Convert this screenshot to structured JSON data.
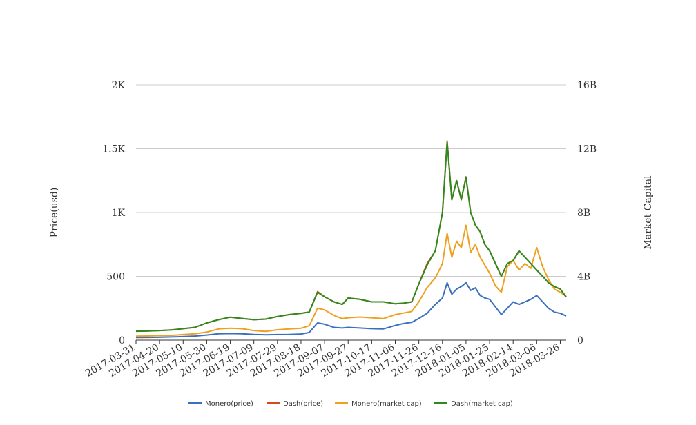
{
  "chart_data": {
    "type": "line",
    "title": "",
    "ylabel": "Price(usd)",
    "ylabel_right": "Market Capital",
    "ylim": [
      0,
      2000
    ],
    "ylim_right": [
      0,
      16000000000
    ],
    "yticks": [
      {
        "value": 0,
        "label": "0"
      },
      {
        "value": 500,
        "label": "500"
      },
      {
        "value": 1000,
        "label": "1K"
      },
      {
        "value": 1500,
        "label": "1.5K"
      },
      {
        "value": 2000,
        "label": "2K"
      }
    ],
    "yticks_right": [
      {
        "value": 0,
        "label": "0"
      },
      {
        "value": 4000000000,
        "label": "4B"
      },
      {
        "value": 8000000000,
        "label": "8B"
      },
      {
        "value": 12000000000,
        "label": "12B"
      },
      {
        "value": 16000000000,
        "label": "16B"
      }
    ],
    "x_tick_labels": [
      "2017-03-31",
      "2017-04-20",
      "2017-05-10",
      "2017-05-30",
      "2017-06-19",
      "2017-07-09",
      "2017-07-29",
      "2017-08-18",
      "2017-09-07",
      "2017-09-27",
      "2017-10-17",
      "2017-11-06",
      "2017-11-26",
      "2017-12-16",
      "2018-01-05",
      "2018-01-25",
      "2018-02-14",
      "2018-03-06",
      "2018-03-26"
    ],
    "legend_position": "bottom",
    "grid": true,
    "x": [
      "2017-03-31",
      "2017-04-10",
      "2017-04-20",
      "2017-04-30",
      "2017-05-10",
      "2017-05-20",
      "2017-05-30",
      "2017-06-09",
      "2017-06-19",
      "2017-06-29",
      "2017-07-09",
      "2017-07-19",
      "2017-07-29",
      "2017-08-08",
      "2017-08-18",
      "2017-08-25",
      "2017-09-01",
      "2017-09-07",
      "2017-09-15",
      "2017-09-22",
      "2017-09-27",
      "2017-10-07",
      "2017-10-17",
      "2017-10-27",
      "2017-11-06",
      "2017-11-13",
      "2017-11-20",
      "2017-11-26",
      "2017-12-03",
      "2017-12-10",
      "2017-12-16",
      "2017-12-20",
      "2017-12-24",
      "2017-12-28",
      "2018-01-01",
      "2018-01-05",
      "2018-01-09",
      "2018-01-13",
      "2018-01-17",
      "2018-01-21",
      "2018-01-25",
      "2018-01-30",
      "2018-02-04",
      "2018-02-09",
      "2018-02-14",
      "2018-02-19",
      "2018-02-24",
      "2018-03-01",
      "2018-03-06",
      "2018-03-11",
      "2018-03-16",
      "2018-03-21",
      "2018-03-26",
      "2018-03-31"
    ],
    "series": [
      {
        "name": "Monero(price)",
        "color": "#3a6fbf",
        "axis": "left",
        "values": [
          20,
          21,
          22,
          25,
          28,
          32,
          40,
          50,
          52,
          50,
          45,
          42,
          44,
          45,
          48,
          60,
          135,
          125,
          100,
          95,
          100,
          95,
          90,
          88,
          115,
          130,
          140,
          170,
          210,
          280,
          330,
          450,
          360,
          400,
          420,
          450,
          390,
          410,
          350,
          330,
          320,
          260,
          200,
          250,
          300,
          280,
          300,
          320,
          350,
          300,
          250,
          220,
          210,
          190
        ]
      },
      {
        "name": "Dash(price)",
        "color": "#d9471e",
        "axis": "left",
        "values": [
          70,
          72,
          75,
          80,
          90,
          100,
          135,
          160,
          180,
          170,
          160,
          165,
          185,
          200,
          210,
          220,
          380,
          340,
          300,
          280,
          330,
          320,
          300,
          300,
          285,
          290,
          300,
          440,
          600,
          700,
          1000,
          1560,
          1100,
          1250,
          1100,
          1280,
          1000,
          900,
          850,
          750,
          700,
          600,
          500,
          600,
          620,
          700,
          650,
          600,
          550,
          500,
          450,
          420,
          400,
          340
        ]
      },
      {
        "name": "Monero(market cap)",
        "color": "#f0a01e",
        "axis": "right",
        "values": [
          250000000,
          260000000,
          280000000,
          300000000,
          350000000,
          400000000,
          500000000,
          700000000,
          750000000,
          720000000,
          600000000,
          550000000,
          650000000,
          700000000,
          750000000,
          900000000,
          2000000000,
          1900000000,
          1550000000,
          1350000000,
          1400000000,
          1450000000,
          1400000000,
          1350000000,
          1600000000,
          1700000000,
          1800000000,
          2400000000,
          3300000000,
          3900000000,
          4800000000,
          6700000000,
          5200000000,
          6200000000,
          5800000000,
          7200000000,
          5500000000,
          6000000000,
          5200000000,
          4700000000,
          4200000000,
          3400000000,
          3000000000,
          4600000000,
          5000000000,
          4400000000,
          4800000000,
          4500000000,
          5800000000,
          4600000000,
          3800000000,
          3200000000,
          3000000000,
          2750000000
        ]
      },
      {
        "name": "Dash(market cap)",
        "color": "#2f8a1e",
        "axis": "right",
        "values": [
          560000000,
          570000000,
          600000000,
          640000000,
          720000000,
          800000000,
          1080000000,
          1280000000,
          1440000000,
          1360000000,
          1280000000,
          1320000000,
          1480000000,
          1600000000,
          1680000000,
          1760000000,
          3000000000,
          2720000000,
          2400000000,
          2240000000,
          2640000000,
          2560000000,
          2400000000,
          2400000000,
          2280000000,
          2320000000,
          2400000000,
          3520000000,
          4700000000,
          5600000000,
          8000000000,
          12400000000,
          8800000000,
          10000000000,
          8800000000,
          10200000000,
          8000000000,
          7200000000,
          6800000000,
          6000000000,
          5600000000,
          4800000000,
          4000000000,
          4800000000,
          5000000000,
          5600000000,
          5200000000,
          4800000000,
          4400000000,
          4000000000,
          3600000000,
          3360000000,
          3200000000,
          2700000000
        ]
      }
    ]
  }
}
